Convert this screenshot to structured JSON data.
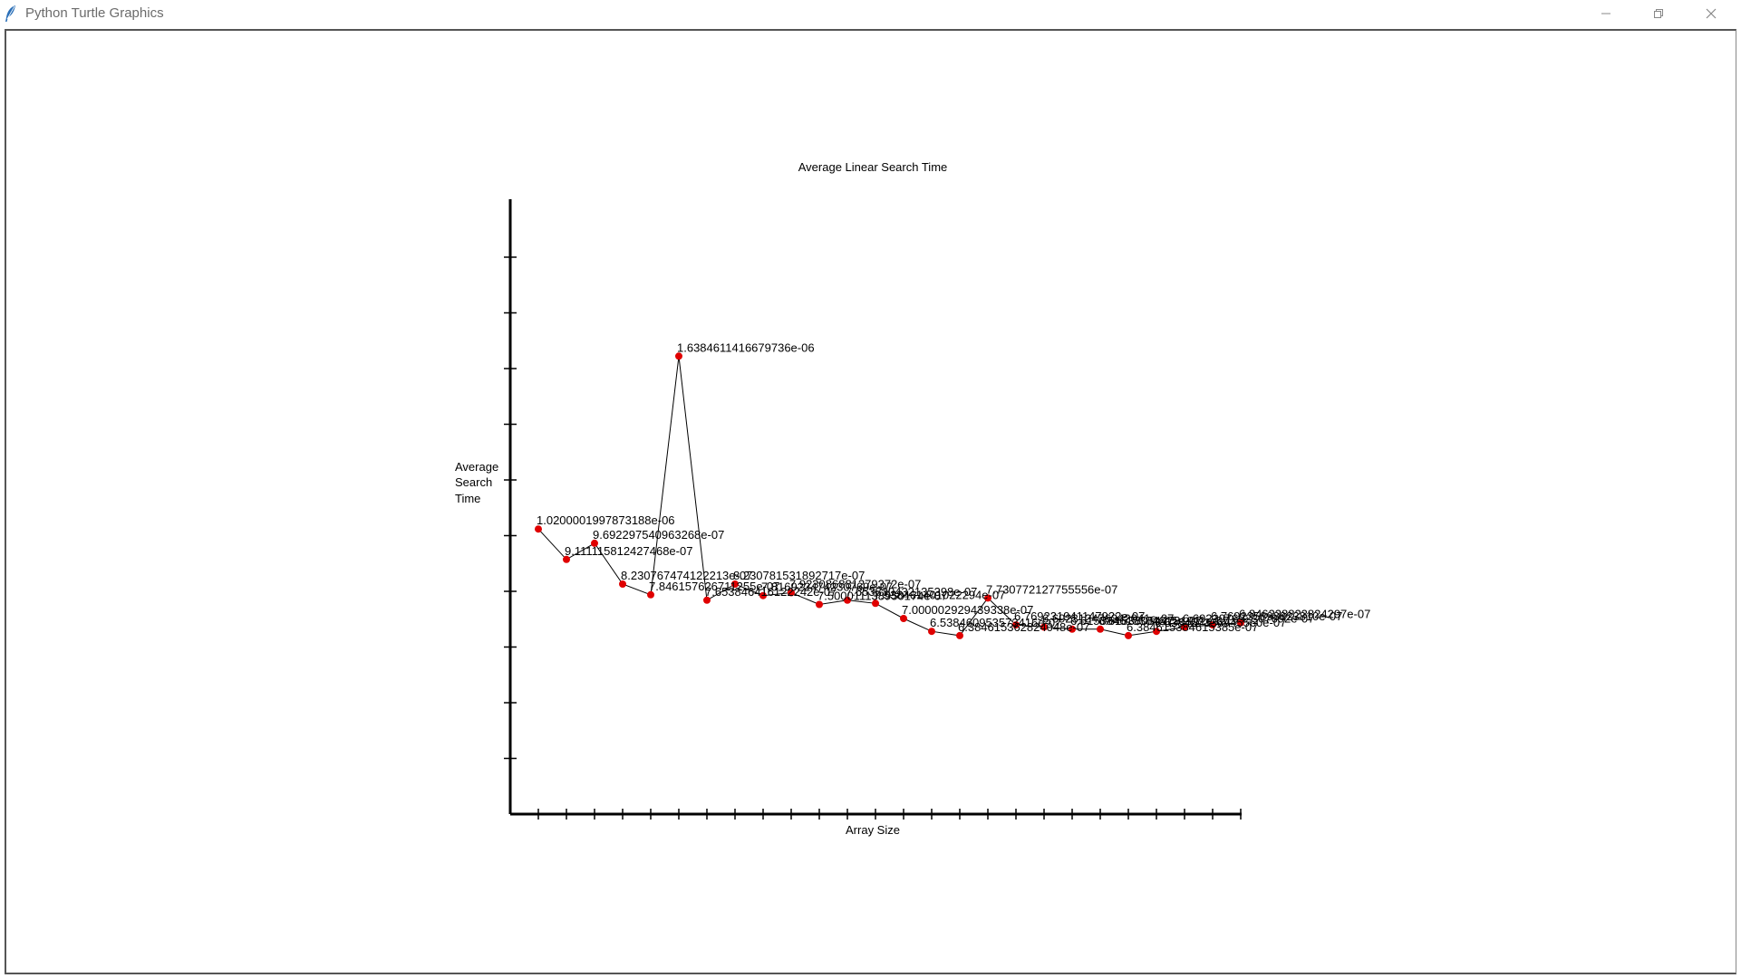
{
  "window": {
    "title": "Python Turtle Graphics",
    "icons": {
      "app": "feather-icon",
      "minimize": "minimize-icon",
      "maximize": "restore-icon",
      "close": "close-icon"
    }
  },
  "colors": {
    "point": "#e00000",
    "line": "#000000",
    "axis": "#000000",
    "frame": "#555555"
  },
  "chart_data": {
    "type": "line",
    "title": "Average Linear Search Time",
    "xlabel": "Array Size",
    "ylabel_lines": [
      "Average",
      "Search",
      "Time"
    ],
    "ylim": [
      0,
      2.2e-06
    ],
    "y_tick_count": 11,
    "x_tick_count": 26,
    "grid": false,
    "legend": "none",
    "values": [
      1.0200001997873188e-06,
      9.111115812427468e-07,
      9.692297540963268e-07,
      8.230767474122213e-07,
      7.846157626711255e-07,
      1.6384611416679736e-06,
      7.653846416122242e-07,
      8.230781531892717e-07,
      7.816922474230769e-07,
      7.923086881279372e-07,
      7.500011138950174e-07,
      7.653830432135398e-07,
      7.538461401022294e-07,
      7.000002929439338e-07,
      6.538460953573416e-07,
      6.384615362824048e-07,
      7.73077212775556e-07,
      6.769231941147922e-07,
      6.692313476342041e-07,
      6.615384615384615e-07,
      6.615380544781911e-07,
      6.384615384615385e-07,
      6.53845733694556e-07,
      6.692307692307692e-07,
      6.76923589882381e-07,
      6.846238823824297e-07
    ],
    "labels": [
      "1.0200001997873188e-06",
      "9.111115812427468e-07",
      "9.692297540963268e-07",
      "8.230767474122213e-07",
      "7.846157626711255e-07",
      "1.6384611416679736e-06",
      "7.653846416122242e-07",
      "8.230781531892717e-07",
      "7.816922474230769e-07",
      "7.923086881279372e-07",
      "7.500011138950174e-07",
      "7.653830432135398e-07",
      "7.538461401022294e-07",
      "7.000002929439338e-07",
      "6.538460953573416e-07",
      "6.384615362824048e-07",
      "7.730772127755556e-07",
      "6.769231941147922e-07",
      "6.692313476342041e-07",
      "6.615384615384615e-07",
      "6.615380544781911e-07",
      "6.384615384615385e-07",
      "6.538457336945560e-07",
      "6.692307692307692e-07",
      "6.769235898823810e-07",
      "6.846238823824297e-07"
    ]
  }
}
